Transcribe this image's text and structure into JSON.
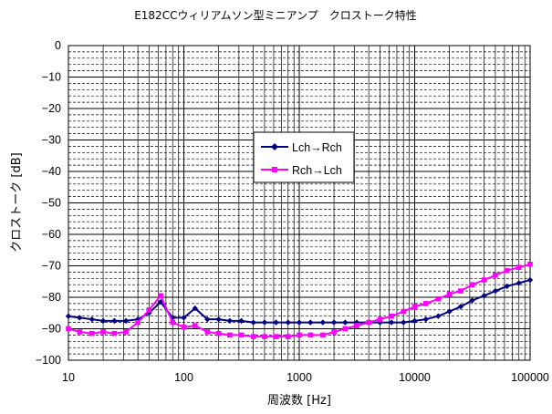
{
  "chart_data": {
    "type": "line",
    "title": "E182CCウィリアムソン型ミニアンプ　クロストーク特性",
    "xlabel": "周波数 [Hz]",
    "ylabel": "クロストーク [dB]",
    "x_scale": "log",
    "xlim": [
      10,
      100000
    ],
    "ylim": [
      -100,
      0
    ],
    "x_tick_labels": [
      "10",
      "100",
      "1000",
      "10000",
      "100000"
    ],
    "y_tick_labels": [
      "0",
      "-10",
      "-20",
      "-30",
      "-40",
      "-50",
      "-60",
      "-70",
      "-80",
      "-90",
      "-100"
    ],
    "grid": "major and minor, dashed horizontal minor lines",
    "legend_position": "center-left, inside plot",
    "series": [
      {
        "name": "Lch→Rch",
        "color": "#000080",
        "marker": "diamond",
        "x": [
          10,
          12.5,
          16,
          20,
          25,
          31.5,
          40,
          50,
          63,
          80,
          100,
          125,
          160,
          200,
          250,
          315,
          400,
          500,
          630,
          800,
          1000,
          1250,
          1600,
          2000,
          2500,
          3150,
          4000,
          5000,
          6300,
          8000,
          10000,
          12500,
          16000,
          20000,
          25000,
          31500,
          40000,
          50000,
          63000,
          80000,
          100000
        ],
        "y": [
          -86,
          -86.5,
          -87,
          -87.5,
          -87.5,
          -87.5,
          -87,
          -85,
          -81.5,
          -86.5,
          -86.5,
          -83.5,
          -87,
          -87,
          -87.5,
          -87.5,
          -88,
          -88,
          -88,
          -88,
          -88,
          -88,
          -88,
          -88,
          -88,
          -88,
          -88,
          -88,
          -88,
          -88,
          -87.5,
          -87,
          -86,
          -84.5,
          -83,
          -81,
          -79.5,
          -78,
          -76.5,
          -75.5,
          -74.5
        ]
      },
      {
        "name": "Rch→Lch",
        "color": "#FF00FF",
        "marker": "square",
        "x": [
          10,
          12.5,
          16,
          20,
          25,
          31.5,
          40,
          50,
          63,
          80,
          100,
          125,
          160,
          200,
          250,
          315,
          400,
          500,
          630,
          800,
          1000,
          1250,
          1600,
          2000,
          2500,
          3150,
          4000,
          5000,
          6300,
          8000,
          10000,
          12500,
          16000,
          20000,
          25000,
          31500,
          40000,
          50000,
          63000,
          80000,
          100000
        ],
        "y": [
          -90,
          -91,
          -91.5,
          -91,
          -91.5,
          -91,
          -88,
          -84,
          -79.5,
          -88,
          -89.5,
          -89,
          -91,
          -91.5,
          -92,
          -92,
          -92.5,
          -92.5,
          -92.5,
          -92.5,
          -92,
          -92,
          -92,
          -91,
          -90,
          -89,
          -88,
          -87,
          -86,
          -84.5,
          -83,
          -82,
          -80.5,
          -79,
          -78,
          -76,
          -74.5,
          -73,
          -71.5,
          -70.5,
          -69.5
        ]
      }
    ]
  }
}
